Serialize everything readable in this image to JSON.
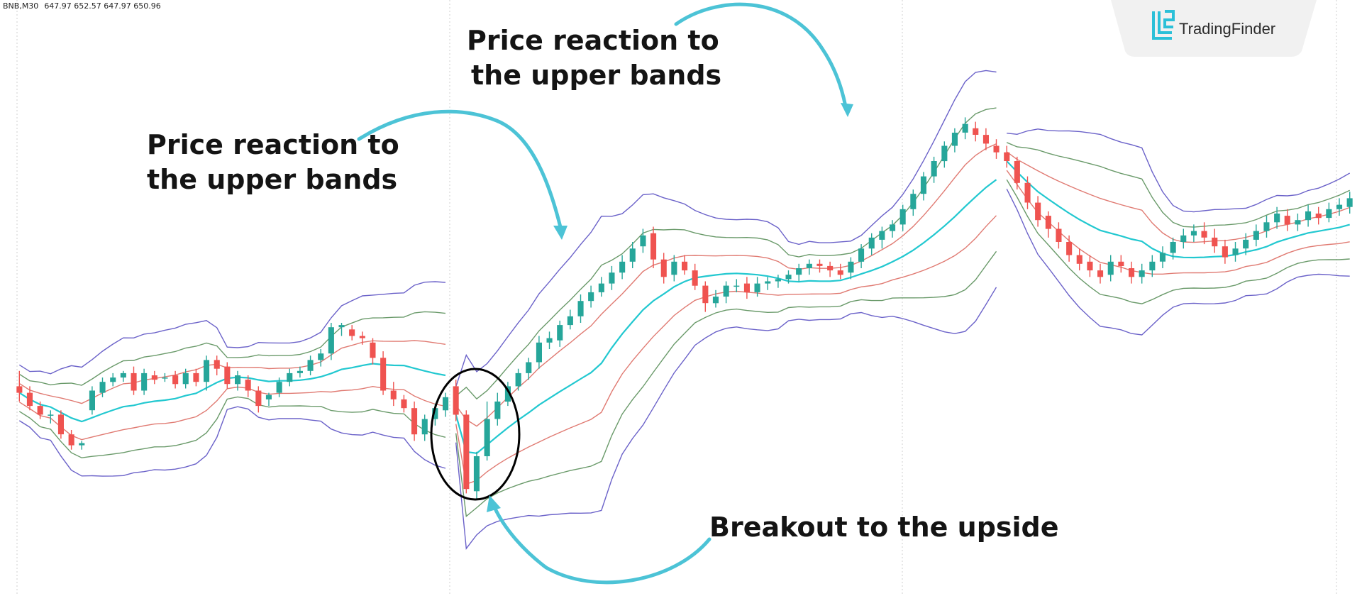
{
  "header": {
    "symbol": "BNB,M30",
    "quote": "647.97 652.57 647.97 650.96"
  },
  "logo": {
    "brand": "TradingFinder"
  },
  "annotations": [
    {
      "id": "top-center",
      "lines": [
        "Price reaction to",
        "the upper bands"
      ]
    },
    {
      "id": "top-left",
      "lines": [
        "Price reaction to",
        "the upper bands"
      ]
    },
    {
      "id": "bottom",
      "lines": [
        "Breakout to the upside"
      ]
    }
  ],
  "colors": {
    "up": "#26a69a",
    "down": "#ef5350",
    "basis": "#22c8d0",
    "band1": "#e07a72",
    "band2": "#6a9a6a",
    "band3": "#6b62c9",
    "arrow": "#4cc3d6",
    "grid": "#cccccc"
  },
  "chart_data": {
    "type": "candlestick",
    "symbol": "BNB,M30",
    "last_ohlc": {
      "open": 647.97,
      "high": 652.57,
      "low": 647.97,
      "close": 650.96
    },
    "note": "Candle and band values are approximate, read from the picture on a relative price scale (no price axis is printed).",
    "candles": [
      [
        484,
        478,
        498,
        470
      ],
      [
        478,
        466,
        484,
        462
      ],
      [
        466,
        458,
        470,
        454
      ],
      [
        458,
        458,
        462,
        450
      ],
      [
        458,
        440,
        462,
        436
      ],
      [
        440,
        430,
        444,
        426
      ],
      [
        430,
        432,
        434,
        426
      ],
      [
        462,
        480,
        484,
        458
      ],
      [
        478,
        488,
        492,
        474
      ],
      [
        488,
        492,
        496,
        484
      ],
      [
        492,
        496,
        498,
        488
      ],
      [
        496,
        480,
        502,
        476
      ],
      [
        480,
        496,
        500,
        476
      ],
      [
        494,
        490,
        498,
        486
      ],
      [
        492,
        492,
        496,
        488
      ],
      [
        494,
        486,
        498,
        482
      ],
      [
        486,
        496,
        500,
        482
      ],
      [
        496,
        488,
        500,
        484
      ],
      [
        488,
        508,
        512,
        480
      ],
      [
        508,
        500,
        512,
        494
      ],
      [
        502,
        486,
        506,
        482
      ],
      [
        486,
        494,
        498,
        480
      ],
      [
        490,
        480,
        494,
        474
      ],
      [
        480,
        466,
        484,
        460
      ],
      [
        472,
        476,
        478,
        466
      ],
      [
        478,
        488,
        492,
        474
      ],
      [
        488,
        496,
        500,
        484
      ],
      [
        496,
        498,
        502,
        492
      ],
      [
        498,
        508,
        512,
        494
      ],
      [
        508,
        514,
        518,
        502
      ],
      [
        514,
        538,
        542,
        508
      ],
      [
        538,
        540,
        542,
        530
      ],
      [
        536,
        530,
        540,
        526
      ],
      [
        530,
        528,
        534,
        522
      ],
      [
        524,
        510,
        528,
        504
      ],
      [
        510,
        480,
        516,
        476
      ],
      [
        480,
        472,
        488,
        466
      ],
      [
        472,
        464,
        476,
        460
      ],
      [
        464,
        440,
        470,
        434
      ],
      [
        440,
        454,
        458,
        434
      ],
      [
        454,
        464,
        468,
        448
      ],
      [
        462,
        474,
        478,
        456
      ],
      [
        484,
        458,
        490,
        452
      ],
      [
        458,
        390,
        462,
        386
      ],
      [
        388,
        420,
        424,
        380
      ],
      [
        420,
        454,
        470,
        416
      ],
      [
        454,
        470,
        478,
        448
      ],
      [
        470,
        484,
        488,
        466
      ],
      [
        484,
        496,
        500,
        480
      ],
      [
        496,
        506,
        510,
        490
      ],
      [
        506,
        524,
        530,
        500
      ],
      [
        524,
        528,
        534,
        518
      ],
      [
        526,
        540,
        544,
        520
      ],
      [
        540,
        548,
        554,
        536
      ],
      [
        548,
        562,
        568,
        542
      ],
      [
        562,
        570,
        576,
        556
      ],
      [
        570,
        578,
        584,
        566
      ],
      [
        578,
        588,
        594,
        572
      ],
      [
        588,
        598,
        604,
        582
      ],
      [
        598,
        610,
        616,
        592
      ],
      [
        612,
        622,
        628,
        606
      ],
      [
        624,
        600,
        630,
        592
      ],
      [
        600,
        584,
        606,
        578
      ],
      [
        586,
        598,
        604,
        580
      ],
      [
        598,
        590,
        604,
        586
      ],
      [
        590,
        576,
        596,
        572
      ],
      [
        576,
        560,
        580,
        552
      ],
      [
        560,
        566,
        572,
        556
      ],
      [
        566,
        576,
        580,
        560
      ],
      [
        576,
        576,
        582,
        570
      ],
      [
        578,
        570,
        584,
        564
      ],
      [
        570,
        578,
        584,
        566
      ],
      [
        578,
        580,
        584,
        572
      ],
      [
        580,
        582,
        586,
        574
      ],
      [
        582,
        586,
        590,
        578
      ],
      [
        586,
        592,
        596,
        580
      ],
      [
        592,
        596,
        600,
        586
      ],
      [
        596,
        594,
        600,
        588
      ],
      [
        594,
        590,
        598,
        584
      ],
      [
        590,
        586,
        596,
        582
      ],
      [
        588,
        598,
        602,
        582
      ],
      [
        598,
        610,
        614,
        592
      ],
      [
        610,
        620,
        624,
        604
      ],
      [
        618,
        626,
        630,
        610
      ],
      [
        626,
        632,
        636,
        620
      ],
      [
        632,
        646,
        650,
        626
      ],
      [
        646,
        660,
        664,
        640
      ],
      [
        660,
        676,
        680,
        654
      ],
      [
        676,
        690,
        694,
        670
      ],
      [
        690,
        704,
        708,
        684
      ],
      [
        704,
        716,
        720,
        698
      ],
      [
        716,
        724,
        730,
        710
      ],
      [
        720,
        714,
        726,
        708
      ],
      [
        714,
        706,
        720,
        700
      ],
      [
        704,
        698,
        710,
        692
      ],
      [
        698,
        690,
        704,
        684
      ],
      [
        690,
        670,
        694,
        664
      ],
      [
        670,
        652,
        676,
        646
      ],
      [
        652,
        636,
        658,
        630
      ],
      [
        640,
        628,
        644,
        620
      ],
      [
        628,
        616,
        634,
        610
      ],
      [
        616,
        604,
        622,
        598
      ],
      [
        604,
        596,
        610,
        590
      ],
      [
        598,
        590,
        604,
        584
      ],
      [
        590,
        584,
        596,
        578
      ],
      [
        586,
        598,
        604,
        580
      ],
      [
        598,
        594,
        604,
        588
      ],
      [
        592,
        584,
        598,
        578
      ],
      [
        584,
        590,
        596,
        578
      ],
      [
        590,
        598,
        604,
        584
      ],
      [
        598,
        606,
        612,
        592
      ],
      [
        606,
        616,
        620,
        600
      ],
      [
        616,
        622,
        628,
        610
      ],
      [
        622,
        626,
        632,
        616
      ],
      [
        626,
        620,
        634,
        614
      ],
      [
        620,
        612,
        628,
        606
      ],
      [
        612,
        602,
        618,
        596
      ],
      [
        604,
        610,
        616,
        598
      ],
      [
        610,
        618,
        624,
        604
      ],
      [
        618,
        626,
        632,
        612
      ],
      [
        626,
        634,
        640,
        620
      ],
      [
        634,
        642,
        648,
        628
      ],
      [
        640,
        632,
        646,
        626
      ],
      [
        632,
        636,
        642,
        626
      ],
      [
        636,
        644,
        650,
        630
      ],
      [
        642,
        638,
        648,
        632
      ],
      [
        638,
        646,
        652,
        634
      ],
      [
        646,
        650,
        656,
        640
      ],
      [
        648,
        656,
        662,
        642
      ]
    ],
    "bands": {
      "basis": "cyan line",
      "levels": [
        "band1 (red)",
        "band2 (green)",
        "band3 (purple)"
      ]
    }
  }
}
